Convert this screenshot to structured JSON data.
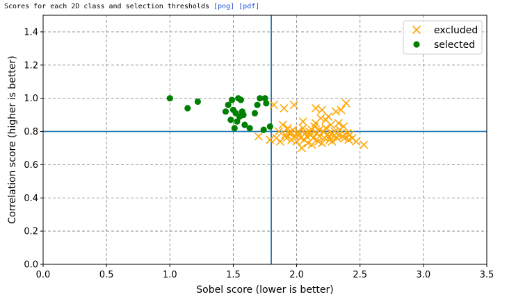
{
  "header": {
    "caption": "Scores for each 2D class and selection thresholds",
    "png_link": "[png]",
    "pdf_link": "[pdf]"
  },
  "chart_data": {
    "type": "scatter",
    "xlabel": "Sobel score (lower is better)",
    "ylabel": "Correlation score (higher is better)",
    "xlim": [
      0.0,
      3.5
    ],
    "ylim": [
      0.0,
      1.5
    ],
    "xticks": [
      0.0,
      0.5,
      1.0,
      1.5,
      2.0,
      2.5,
      3.0,
      3.5
    ],
    "xtick_labels": [
      "0.0",
      "0.5",
      "1.0",
      "1.5",
      "2.0",
      "2.5",
      "3.0",
      "3.5"
    ],
    "yticks": [
      0.0,
      0.2,
      0.4,
      0.6,
      0.8,
      1.0,
      1.2,
      1.4
    ],
    "ytick_labels": [
      "0.0",
      "0.2",
      "0.4",
      "0.6",
      "0.8",
      "1.0",
      "1.2",
      "1.4"
    ],
    "grid": true,
    "legend_position": "top-right",
    "thresholds": {
      "x": 1.8,
      "y": 0.8,
      "color": "#1f77b4"
    },
    "series": [
      {
        "name": "excluded",
        "marker": "x",
        "color": "#ffa500",
        "points": [
          [
            1.7,
            0.77
          ],
          [
            1.79,
            0.75
          ],
          [
            1.82,
            0.96
          ],
          [
            1.84,
            0.76
          ],
          [
            1.86,
            0.8
          ],
          [
            1.87,
            0.74
          ],
          [
            1.89,
            0.84
          ],
          [
            1.9,
            0.94
          ],
          [
            1.91,
            0.78
          ],
          [
            1.92,
            0.76
          ],
          [
            1.93,
            0.82
          ],
          [
            1.95,
            0.79
          ],
          [
            1.96,
            0.75
          ],
          [
            1.97,
            0.81
          ],
          [
            1.98,
            0.96
          ],
          [
            1.99,
            0.77
          ],
          [
            2.0,
            0.74
          ],
          [
            2.01,
            0.8
          ],
          [
            2.02,
            0.78
          ],
          [
            2.03,
            0.76
          ],
          [
            2.04,
            0.7
          ],
          [
            2.05,
            0.82
          ],
          [
            2.06,
            0.75
          ],
          [
            2.07,
            0.79
          ],
          [
            2.08,
            0.77
          ],
          [
            2.09,
            0.73
          ],
          [
            2.1,
            0.8
          ],
          [
            2.11,
            0.78
          ],
          [
            2.12,
            0.81
          ],
          [
            2.13,
            0.76
          ],
          [
            2.14,
            0.83
          ],
          [
            2.15,
            0.94
          ],
          [
            2.16,
            0.79
          ],
          [
            2.17,
            0.74
          ],
          [
            2.18,
            0.77
          ],
          [
            2.19,
            0.88
          ],
          [
            2.2,
            0.93
          ],
          [
            2.21,
            0.8
          ],
          [
            2.22,
            0.76
          ],
          [
            2.23,
            0.82
          ],
          [
            2.24,
            0.78
          ],
          [
            2.25,
            0.89
          ],
          [
            2.26,
            0.75
          ],
          [
            2.27,
            0.84
          ],
          [
            2.28,
            0.79
          ],
          [
            2.29,
            0.77
          ],
          [
            2.3,
            0.8
          ],
          [
            2.31,
            0.92
          ],
          [
            2.32,
            0.76
          ],
          [
            2.33,
            0.78
          ],
          [
            2.34,
            0.81
          ],
          [
            2.35,
            0.93
          ],
          [
            2.36,
            0.77
          ],
          [
            2.37,
            0.83
          ],
          [
            2.38,
            0.76
          ],
          [
            2.39,
            0.97
          ],
          [
            2.4,
            0.79
          ],
          [
            2.41,
            0.75
          ],
          [
            2.42,
            0.78
          ],
          [
            2.44,
            0.76
          ],
          [
            2.47,
            0.74
          ],
          [
            2.53,
            0.72
          ],
          [
            2.12,
            0.72
          ],
          [
            2.2,
            0.73
          ],
          [
            2.28,
            0.74
          ],
          [
            2.05,
            0.86
          ],
          [
            2.23,
            0.87
          ],
          [
            2.15,
            0.85
          ],
          [
            2.33,
            0.85
          ],
          [
            1.94,
            0.79
          ],
          [
            2.18,
            0.81
          ],
          [
            2.26,
            0.77
          ]
        ]
      },
      {
        "name": "selected",
        "marker": "o",
        "color": "#008000",
        "points": [
          [
            1.0,
            1.0
          ],
          [
            1.14,
            0.94
          ],
          [
            1.22,
            0.98
          ],
          [
            1.44,
            0.92
          ],
          [
            1.46,
            0.96
          ],
          [
            1.48,
            0.87
          ],
          [
            1.49,
            0.99
          ],
          [
            1.5,
            0.93
          ],
          [
            1.51,
            0.82
          ],
          [
            1.52,
            0.91
          ],
          [
            1.53,
            0.86
          ],
          [
            1.54,
            1.0
          ],
          [
            1.55,
            0.89
          ],
          [
            1.56,
            0.99
          ],
          [
            1.57,
            0.92
          ],
          [
            1.58,
            0.9
          ],
          [
            1.59,
            0.84
          ],
          [
            1.63,
            0.82
          ],
          [
            1.67,
            0.91
          ],
          [
            1.69,
            0.96
          ],
          [
            1.71,
            1.0
          ],
          [
            1.74,
            0.81
          ],
          [
            1.75,
            1.0
          ],
          [
            1.76,
            0.97
          ],
          [
            1.79,
            0.83
          ]
        ]
      }
    ]
  }
}
